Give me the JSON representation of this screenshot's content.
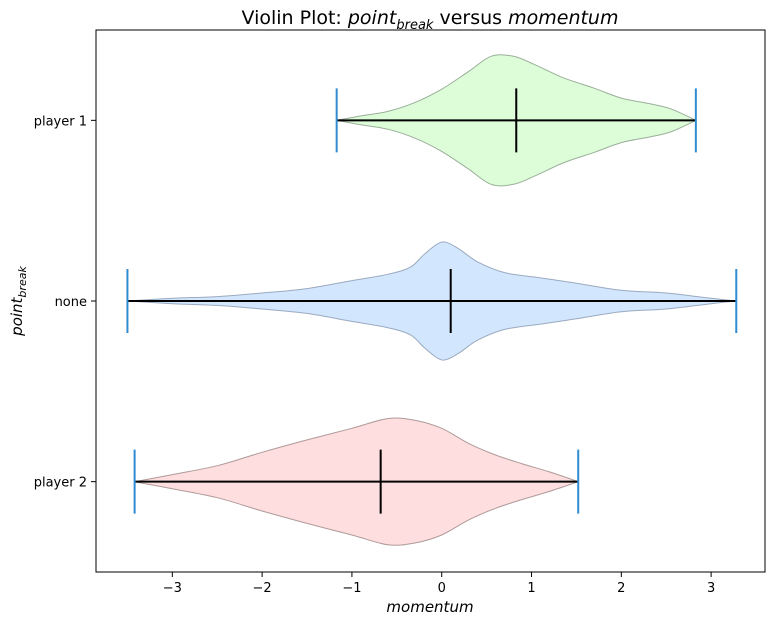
{
  "chart_data": {
    "type": "violin",
    "title": {
      "prefix": "Violin Plot: ",
      "ylabel_main": "point",
      "ylabel_sub": "break",
      "middle": " versus ",
      "xlabel": "momentum"
    },
    "xlabel": "momentum",
    "ylabel": {
      "main": "point",
      "sub": "break"
    },
    "xlim": [
      -3.85,
      3.6
    ],
    "xticks": [
      {
        "value": -3,
        "label": "−3"
      },
      {
        "value": -2,
        "label": "−2"
      },
      {
        "value": -1,
        "label": "−1"
      },
      {
        "value": 0,
        "label": "0"
      },
      {
        "value": 1,
        "label": "1"
      },
      {
        "value": 2,
        "label": "2"
      },
      {
        "value": 3,
        "label": "3"
      }
    ],
    "grid": false,
    "orientation": "horizontal",
    "categories": [
      "player 1",
      "none",
      "player 2"
    ],
    "series": [
      {
        "category": "player 1",
        "min": -1.17,
        "max": 2.83,
        "median": 0.83,
        "fill": "#ddfdd9",
        "edge": "#9aaf99",
        "density": [
          [
            -1.17,
            0.0
          ],
          [
            -0.9,
            0.05
          ],
          [
            -0.6,
            0.1
          ],
          [
            -0.3,
            0.2
          ],
          [
            0.0,
            0.35
          ],
          [
            0.3,
            0.55
          ],
          [
            0.55,
            0.72
          ],
          [
            0.8,
            0.72
          ],
          [
            1.05,
            0.62
          ],
          [
            1.35,
            0.48
          ],
          [
            1.7,
            0.36
          ],
          [
            2.0,
            0.25
          ],
          [
            2.3,
            0.19
          ],
          [
            2.55,
            0.13
          ],
          [
            2.83,
            0.0
          ]
        ]
      },
      {
        "category": "none",
        "min": -3.5,
        "max": 3.28,
        "median": 0.1,
        "fill": "#d2e6fe",
        "edge": "#9aaabf",
        "density": [
          [
            -3.5,
            0.0
          ],
          [
            -3.0,
            0.03
          ],
          [
            -2.5,
            0.05
          ],
          [
            -2.0,
            0.09
          ],
          [
            -1.5,
            0.14
          ],
          [
            -1.0,
            0.23
          ],
          [
            -0.6,
            0.3
          ],
          [
            -0.35,
            0.38
          ],
          [
            -0.2,
            0.52
          ],
          [
            -0.05,
            0.64
          ],
          [
            0.05,
            0.66
          ],
          [
            0.2,
            0.58
          ],
          [
            0.4,
            0.44
          ],
          [
            0.7,
            0.32
          ],
          [
            1.1,
            0.26
          ],
          [
            1.5,
            0.2
          ],
          [
            2.0,
            0.12
          ],
          [
            2.5,
            0.09
          ],
          [
            3.0,
            0.03
          ],
          [
            3.28,
            0.0
          ]
        ]
      },
      {
        "category": "player 2",
        "min": -3.42,
        "max": 1.52,
        "median": -0.68,
        "fill": "#fedede",
        "edge": "#b09a9a",
        "density": [
          [
            -3.42,
            0.0
          ],
          [
            -3.0,
            0.08
          ],
          [
            -2.5,
            0.18
          ],
          [
            -2.0,
            0.33
          ],
          [
            -1.5,
            0.47
          ],
          [
            -1.0,
            0.6
          ],
          [
            -0.6,
            0.71
          ],
          [
            -0.3,
            0.69
          ],
          [
            0.0,
            0.6
          ],
          [
            0.3,
            0.43
          ],
          [
            0.6,
            0.3
          ],
          [
            0.9,
            0.2
          ],
          [
            1.2,
            0.11
          ],
          [
            1.52,
            0.0
          ]
        ]
      }
    ],
    "colors": {
      "whisker": "#2f8bd2",
      "median": "#000000",
      "range_line": "#000000"
    }
  }
}
